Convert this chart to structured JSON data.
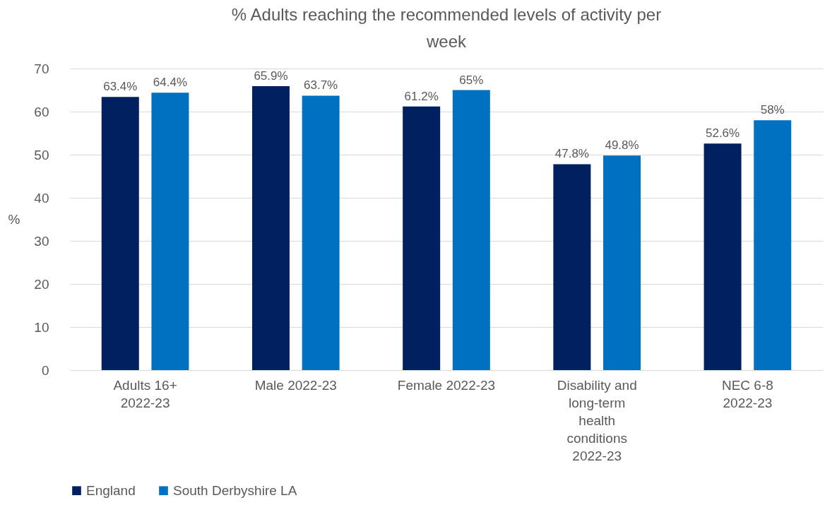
{
  "chart_data": {
    "type": "bar",
    "title": "% Adults reaching the recommended levels of activity per week",
    "ylabel": "%",
    "categories": [
      "Adults 16+ 2022-23",
      "Male 2022-23",
      "Female 2022-23",
      "Disability and long-term health conditions 2022-23",
      "NEC 6-8 2022-23"
    ],
    "series": [
      {
        "name": "England",
        "color": "#002060",
        "values": [
          63.4,
          65.9,
          61.2,
          47.8,
          52.6
        ],
        "value_labels": [
          "63.4%",
          "65.9%",
          "61.2%",
          "47.8%",
          "52.6%"
        ]
      },
      {
        "name": "South Derbyshire LA",
        "color": "#0070c0",
        "values": [
          64.4,
          63.7,
          65,
          49.8,
          58
        ],
        "value_labels": [
          "64.4%",
          "63.7%",
          "65%",
          "49.8%",
          "58%"
        ]
      }
    ],
    "ylim": [
      0,
      70
    ],
    "yticks": [
      0,
      10,
      20,
      30,
      40,
      50,
      60,
      70
    ],
    "grid": "y",
    "legend": "bottom"
  }
}
